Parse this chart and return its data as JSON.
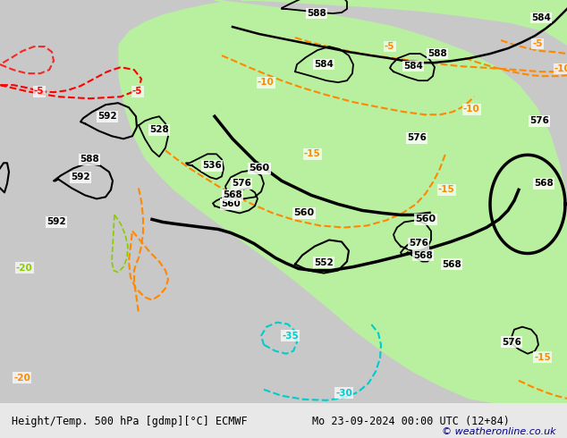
{
  "title_left": "Height/Temp. 500 hPa [gdmp][°C] ECMWF",
  "title_right": "Mo 23-09-2024 00:00 UTC (12+84)",
  "copyright": "© weatheronline.co.uk",
  "bg_color": "#d0d0d0",
  "land_color": "#c8c8c8",
  "green_fill_color": "#b8f0a0",
  "fig_width": 6.34,
  "fig_height": 4.9,
  "dpi": 100
}
